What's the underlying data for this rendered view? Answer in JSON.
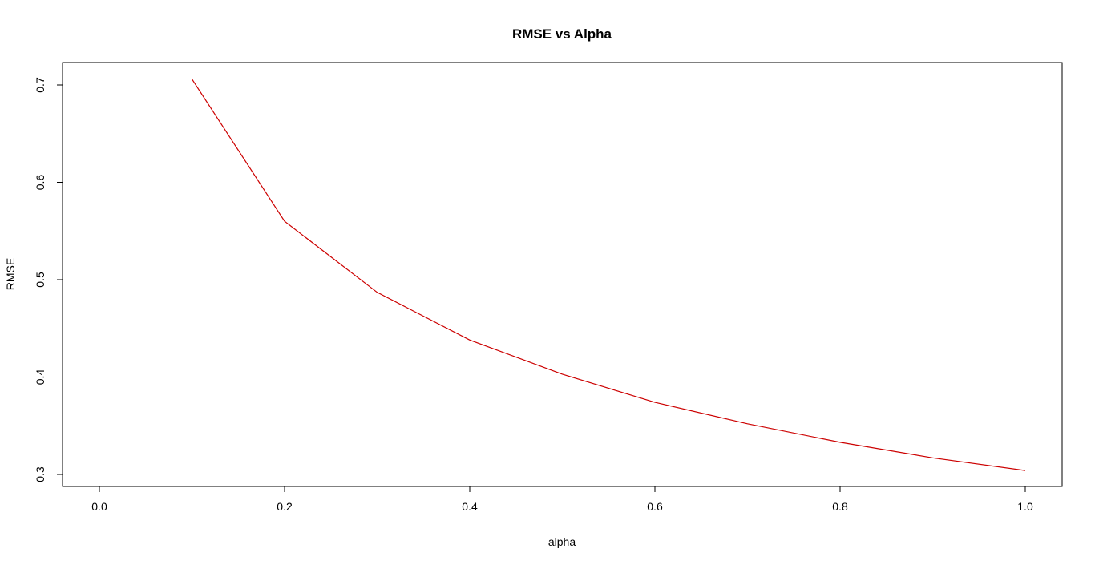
{
  "chart_data": {
    "type": "line",
    "title": "RMSE vs Alpha",
    "xlabel": "alpha",
    "ylabel": "RMSE",
    "xlim": [
      0.0,
      1.0
    ],
    "ylim": [
      0.3,
      0.7
    ],
    "x_ticks": [
      "0.0",
      "0.2",
      "0.4",
      "0.6",
      "0.8",
      "1.0"
    ],
    "y_ticks": [
      "0.3",
      "0.4",
      "0.5",
      "0.6",
      "0.7"
    ],
    "grid": false,
    "legend": "none",
    "series": [
      {
        "color": "#cc0000",
        "x": [
          0.1,
          0.2,
          0.3,
          0.4,
          0.5,
          0.6,
          0.7,
          0.8,
          0.9,
          1.0
        ],
        "y": [
          0.706,
          0.56,
          0.487,
          0.438,
          0.403,
          0.374,
          0.352,
          0.333,
          0.317,
          0.304
        ]
      }
    ]
  }
}
